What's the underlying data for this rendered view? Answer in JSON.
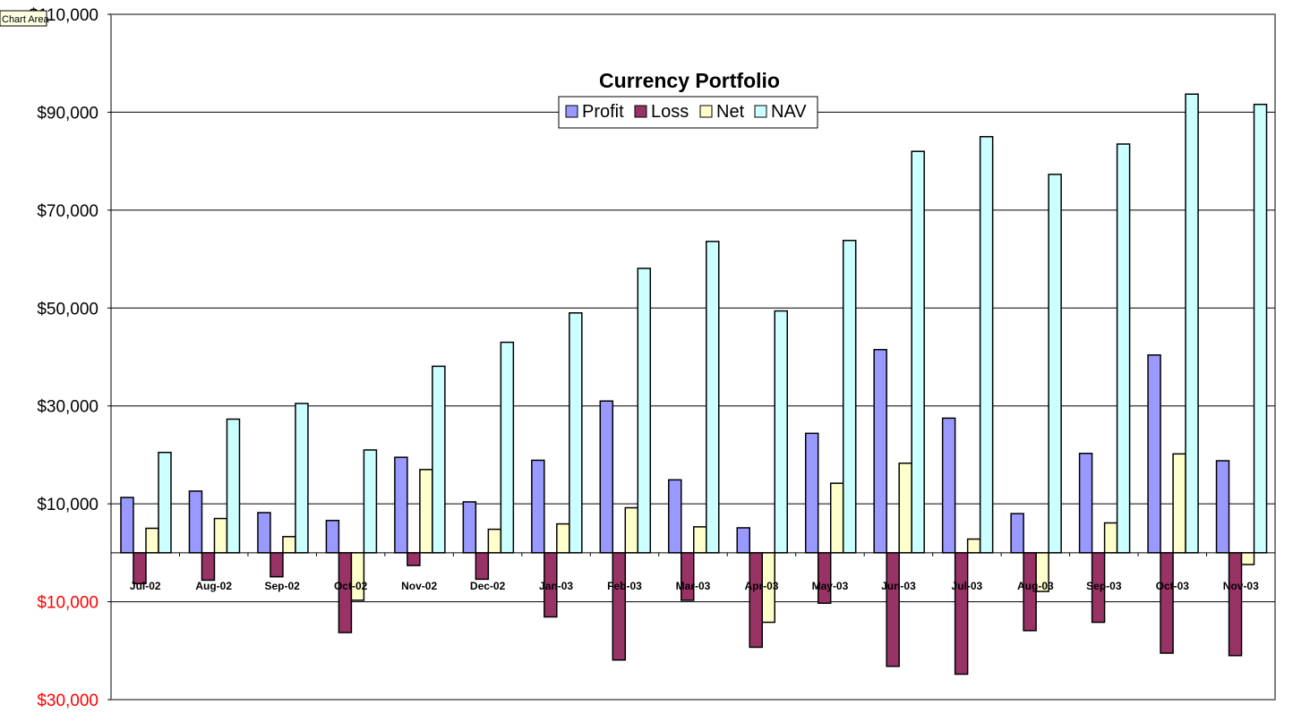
{
  "tooltip": "Chart Area",
  "chart_data": {
    "type": "bar",
    "title": "Currency Portfolio",
    "xlabel": "",
    "ylabel": "",
    "ylim": [
      -30000,
      110000
    ],
    "y_ticks": [
      {
        "value": 110000,
        "label": "$110,000",
        "color": "#000000"
      },
      {
        "value": 90000,
        "label": "$90,000",
        "color": "#000000"
      },
      {
        "value": 70000,
        "label": "$70,000",
        "color": "#000000"
      },
      {
        "value": 50000,
        "label": "$50,000",
        "color": "#000000"
      },
      {
        "value": 30000,
        "label": "$30,000",
        "color": "#000000"
      },
      {
        "value": 10000,
        "label": "$10,000",
        "color": "#000000"
      },
      {
        "value": -10000,
        "label": "$10,000",
        "color": "#ff0000"
      },
      {
        "value": -30000,
        "label": "$30,000",
        "color": "#ff0000"
      }
    ],
    "grid": true,
    "legend_position": "top-center",
    "categories": [
      "Jul-02",
      "Aug-02",
      "Sep-02",
      "Oct-02",
      "Nov-02",
      "Dec-02",
      "Jan-03",
      "Feb-03",
      "Mar-03",
      "Apr-03",
      "May-03",
      "Jun-03",
      "Jul-03",
      "Aug-03",
      "Sep-03",
      "Oct-03",
      "Nov-03"
    ],
    "series": [
      {
        "name": "Profit",
        "color": "#9999ff",
        "values": [
          11300,
          12600,
          8200,
          6600,
          19500,
          10400,
          18900,
          31000,
          14900,
          5100,
          24400,
          41500,
          27500,
          8000,
          20300,
          40400,
          18800
        ]
      },
      {
        "name": "Loss",
        "color": "#993366",
        "values": [
          -6300,
          -5600,
          -4900,
          -16300,
          -2600,
          -5400,
          -13100,
          -21900,
          -9700,
          -19300,
          -10300,
          -23200,
          -24800,
          -15900,
          -14200,
          -20500,
          -21000
        ]
      },
      {
        "name": "Net",
        "color": "#ffffcc",
        "values": [
          5000,
          7000,
          3300,
          -9700,
          17000,
          4800,
          5900,
          9200,
          5300,
          -14200,
          14200,
          18300,
          2800,
          -7900,
          6100,
          20200,
          -2400
        ]
      },
      {
        "name": "NAV",
        "color": "#ccffff",
        "values": [
          20500,
          27300,
          30500,
          21000,
          38100,
          43000,
          49000,
          58100,
          63600,
          49400,
          63800,
          82000,
          85000,
          77300,
          83500,
          93700,
          91600
        ]
      }
    ]
  }
}
